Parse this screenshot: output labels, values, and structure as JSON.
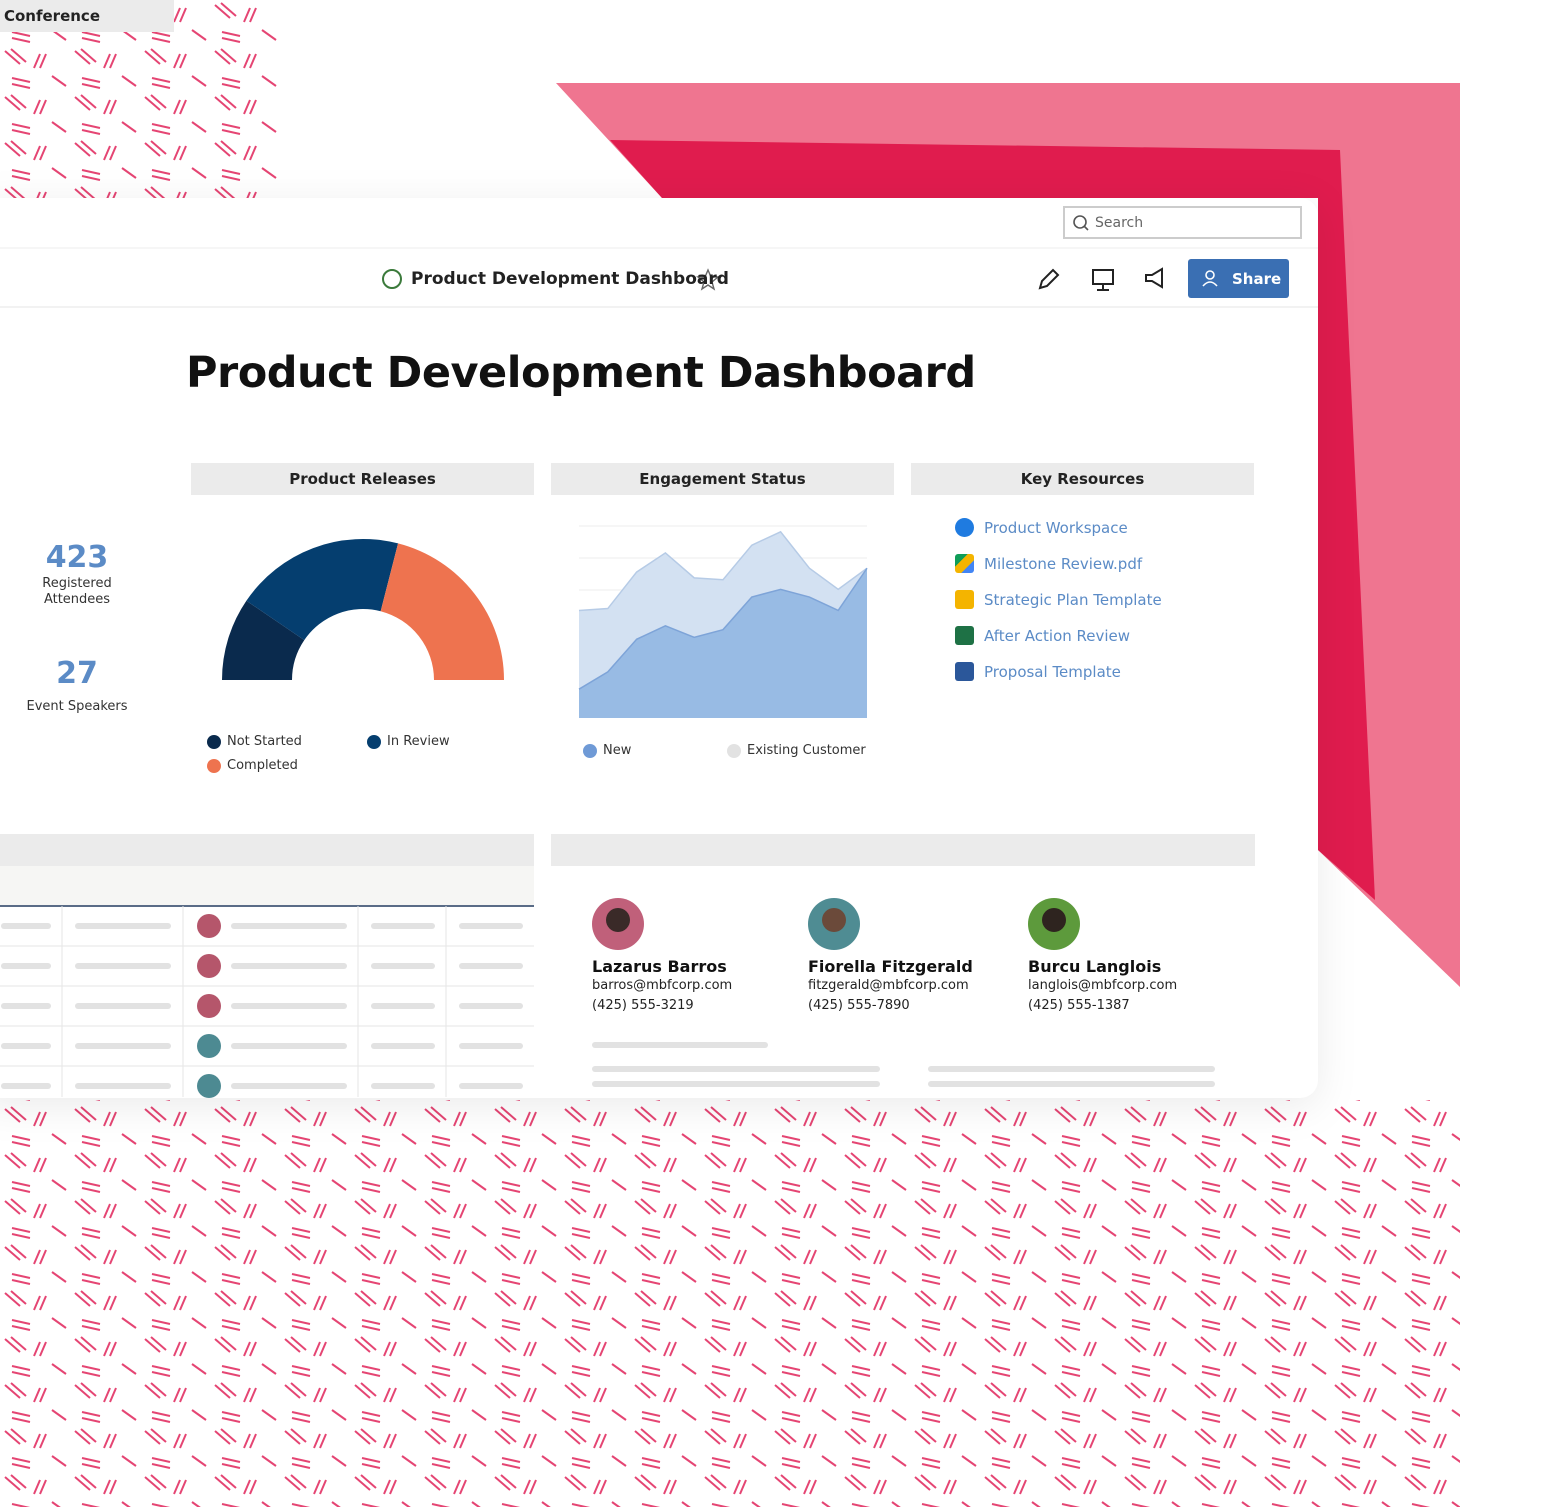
{
  "search": {
    "placeholder": "Search"
  },
  "toolbar": {
    "title": "Product Development Dashboard",
    "share": "Share"
  },
  "page": {
    "title": "Product Development Dashboard"
  },
  "widgets": {
    "conference": {
      "title": "Conference",
      "metrics": [
        {
          "value": 423,
          "label": "Registered Attendees"
        },
        {
          "value": 27,
          "label": "Event Speakers"
        }
      ]
    },
    "product_releases": {
      "title": "Product Releases",
      "chart": {
        "type": "half-donut",
        "series": [
          {
            "name": "Not Started",
            "color": "#0a2a4d",
            "value": 19
          },
          {
            "name": "In Review",
            "color": "#053e6f",
            "value": 39
          },
          {
            "name": "Completed",
            "color": "#ee734f",
            "value": 42
          }
        ]
      }
    },
    "engagement": {
      "title": "Engagement Status",
      "chart": {
        "type": "area",
        "ylim": [
          0,
          100
        ],
        "series": [
          {
            "name": "New",
            "color": "#95b8e3",
            "legend_color": "#6f9ad6",
            "values": [
              15,
              24,
              41,
              48,
              42,
              46,
              63,
              67,
              63,
              56,
              78
            ]
          },
          {
            "name": "Existing Customer",
            "color": "#d3e1f2",
            "legend_color": "#e2e2e2",
            "values": [
              56,
              57,
              76,
              86,
              73,
              72,
              90,
              97,
              78,
              67,
              78
            ]
          }
        ]
      }
    },
    "resources": {
      "title": "Key Resources",
      "items": [
        "Product Workspace",
        "Milestone Review.pdf",
        "Strategic Plan Template",
        "After Action Review",
        "Proposal Template"
      ]
    }
  },
  "contacts": [
    {
      "name": "Lazarus Barros",
      "email": "barros@mbfcorp.com",
      "phone": "(425) 555-3219"
    },
    {
      "name": "Fiorella Fitzgerald",
      "email": "fitzgerald@mbfcorp.com",
      "phone": "(425) 555-7890"
    },
    {
      "name": "Burcu Langlois",
      "email": "langlois@mbfcorp.com",
      "phone": "(425) 555-1387"
    }
  ]
}
